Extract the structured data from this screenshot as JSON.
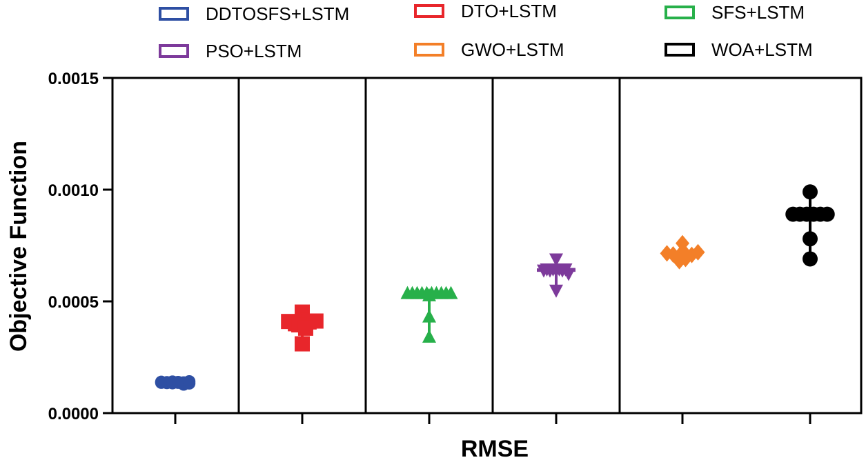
{
  "chart_data": {
    "type": "scatter",
    "title": "",
    "xlabel": "RMSE",
    "ylabel": "Objective Function",
    "ylim": [
      0,
      0.0015
    ],
    "yticks": [
      "0.0000",
      "0.0005",
      "0.0010",
      "0.0015"
    ],
    "yticks_values": [
      0,
      0.0005,
      0.001,
      0.0015
    ],
    "grid": false,
    "legend_position": "top",
    "series": [
      {
        "name": "DDTOSFS+LSTM",
        "color": "#2e4fa3",
        "marker": "circle",
        "values": [
          0.00014,
          0.000138,
          0.000136,
          0.000141,
          0.000135,
          0.000139,
          0.000137,
          0.000134,
          0.000142,
          0.000136,
          0.000128,
          0.000133
        ],
        "mean": 0.000136,
        "err_low": 0.000122,
        "err_high": 0.000145
      },
      {
        "name": "DTO+LSTM",
        "color": "#e8262b",
        "marker": "square",
        "values": [
          0.00041,
          0.0004,
          0.000415,
          0.000408,
          0.000395,
          0.000412,
          0.00038,
          0.000452,
          0.00031
        ],
        "mean": 0.000405,
        "err_low": 0.00031,
        "err_high": 0.00046
      },
      {
        "name": "SFS+LSTM",
        "color": "#27b04a",
        "marker": "triangle-up",
        "values": [
          0.000535,
          0.000535,
          0.000535,
          0.000535,
          0.000535,
          0.000535,
          0.000535,
          0.000535,
          0.000535,
          0.000535,
          0.000525,
          0.00043,
          0.00034
        ],
        "mean": 0.000525,
        "err_low": 0.00034,
        "err_high": 0.00054
      },
      {
        "name": "PSO+LSTM",
        "color": "#7d3a9b",
        "marker": "triangle-down",
        "values": [
          0.000645,
          0.00064,
          0.000645,
          0.00064,
          0.000645,
          0.00064,
          0.000645,
          0.00064,
          0.00069,
          0.00055,
          0.000625
        ],
        "mean": 0.00064,
        "err_low": 0.00055,
        "err_high": 0.00069
      },
      {
        "name": "GWO+LSTM",
        "color": "#f37f28",
        "marker": "diamond",
        "values": [
          0.000715,
          0.00071,
          0.000705,
          0.000712,
          0.000708,
          0.00076,
          0.00068,
          0.00069,
          0.00072
        ],
        "mean": 0.00071,
        "err_low": 0.00068,
        "err_high": 0.00076
      },
      {
        "name": "WOA+LSTM",
        "color": "#000000",
        "marker": "circle",
        "values": [
          0.00089,
          0.00089,
          0.00089,
          0.00089,
          0.00089,
          0.00089,
          0.00099,
          0.00078,
          0.00069
        ],
        "mean": 0.00089,
        "err_low": 0.00069,
        "err_high": 0.00099
      }
    ]
  }
}
